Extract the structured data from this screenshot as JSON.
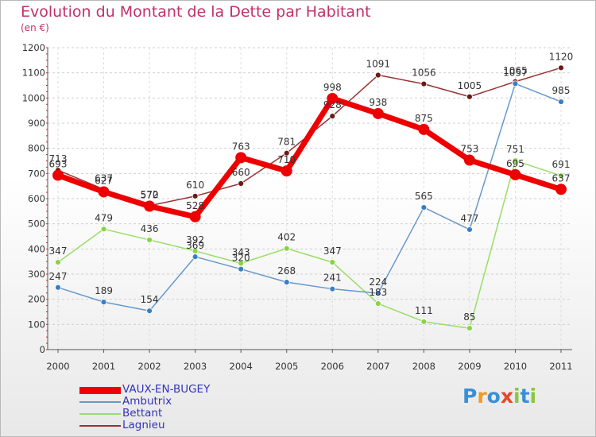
{
  "title": "Evolution du Montant de la Dette par Habitant",
  "subtitle": "(en €)",
  "logo_text": "Proxiti",
  "chart_data": {
    "type": "line",
    "title": "Evolution du Montant de la Dette par Habitant",
    "ylabel": "(en €)",
    "ylim": [
      0,
      1200
    ],
    "yticks": [
      0,
      100,
      200,
      300,
      400,
      500,
      600,
      700,
      800,
      900,
      1000,
      1100,
      1200
    ],
    "grid": true,
    "legend_position": "bottom-left",
    "categories": [
      "2000",
      "2001",
      "2002",
      "2003",
      "2004",
      "2005",
      "2006",
      "2007",
      "2008",
      "2009",
      "2010",
      "2011"
    ],
    "series": [
      {
        "name": "VAUX-EN-BUGEY",
        "color": "#ee0000",
        "values": [
          693,
          627,
          570,
          528,
          763,
          710,
          998,
          938,
          875,
          753,
          695,
          637
        ]
      },
      {
        "name": "Ambutrix",
        "color": "#6699cc",
        "values": [
          247,
          189,
          154,
          369,
          320,
          268,
          241,
          224,
          565,
          477,
          1057,
          985
        ]
      },
      {
        "name": "Bettant",
        "color": "#99dd66",
        "values": [
          347,
          479,
          436,
          392,
          343,
          402,
          347,
          183,
          111,
          85,
          751,
          691
        ]
      },
      {
        "name": "Lagnieu",
        "color": "#993333",
        "values": [
          713,
          637,
          572,
          610,
          660,
          781,
          928,
          1091,
          1056,
          1005,
          1065,
          1120
        ]
      }
    ]
  }
}
